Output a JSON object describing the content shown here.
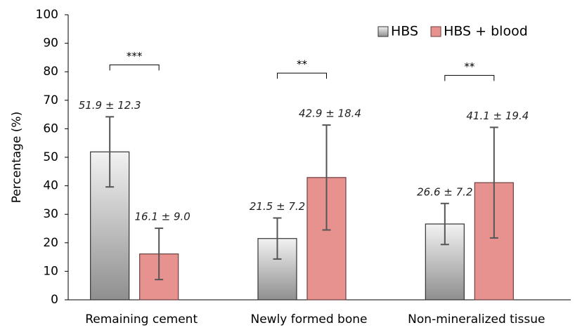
{
  "chart_data": {
    "type": "bar",
    "y_label": "Percentage (%)",
    "categories": [
      "Remaining cement",
      "Newly formed bone",
      "Non-mineralized tissue"
    ],
    "series": [
      {
        "name": "HBS",
        "color": "#b0b0b0",
        "values": [
          51.9,
          21.5,
          26.6
        ],
        "errors": [
          12.3,
          7.2,
          7.2
        ],
        "value_labels": [
          "51.9 ± 12.3",
          "21.5 ± 7.2",
          "26.6 ± 7.2"
        ]
      },
      {
        "name": "HBS + blood",
        "color": "#e8928f",
        "values": [
          16.1,
          42.9,
          41.1
        ],
        "errors": [
          9.0,
          18.4,
          19.4
        ],
        "value_labels": [
          "16.1 ± 9.0",
          "42.9 ± 18.4",
          "41.1 ± 19.4"
        ]
      }
    ],
    "annotations": [
      "***",
      "**",
      "**"
    ],
    "ylim": [
      0,
      100
    ],
    "yticks": [
      0,
      10,
      20,
      30,
      40,
      50,
      60,
      70,
      80,
      90,
      100
    ],
    "legend": "top-right",
    "grid": false
  }
}
